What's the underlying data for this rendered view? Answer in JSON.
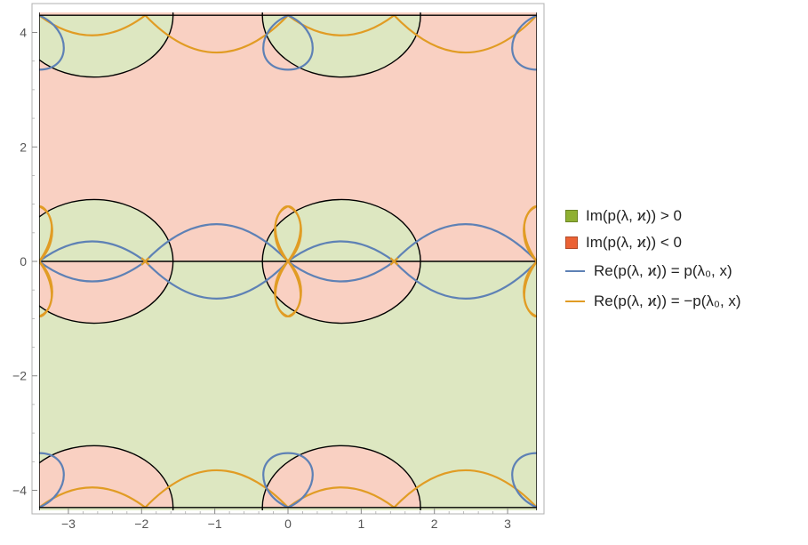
{
  "chart_data": {
    "type": "region",
    "xlim": [
      -3.4,
      3.4
    ],
    "ylim": [
      -4.35,
      4.35
    ],
    "x_ticks": [
      -3,
      -2,
      -1,
      0,
      1,
      2,
      3
    ],
    "x_tick_labels": [
      "−3",
      "−2",
      "−1",
      "0",
      "1",
      "2",
      "3"
    ],
    "y_ticks": [
      -4,
      -2,
      0,
      2,
      4
    ],
    "y_tick_labels": [
      "−4",
      "−2",
      "0",
      "2",
      "4"
    ],
    "legend_position": "right",
    "regions": [
      {
        "name": "Im(p(λ, ϰ)) > 0",
        "color": "#8fb032"
      },
      {
        "name": "Im(p(λ, ϰ)) < 0",
        "color": "#eb6235"
      }
    ],
    "series": [
      {
        "name": "Re(p(λ, ϰ)) = p(λ₀, x)",
        "color": "#5e81b5"
      },
      {
        "name": "Re(p(λ, ϰ)) = −p(λ₀, x)",
        "color": "#e19c24"
      }
    ],
    "boundary_circles": [
      {
        "center": [
          -2.65,
          0
        ],
        "radius": 1.08
      },
      {
        "center": [
          0.73,
          0
        ],
        "radius": 1.08
      },
      {
        "center": [
          -2.65,
          4.3
        ],
        "radius": 1.08
      },
      {
        "center": [
          0.73,
          4.3
        ],
        "radius": 1.08
      },
      {
        "center": [
          -2.65,
          -4.3
        ],
        "radius": 1.08
      },
      {
        "center": [
          0.73,
          -4.3
        ],
        "radius": 1.08
      }
    ],
    "blue_lobe_points_x": [
      -3.4,
      -1.95,
      1.45,
      3.4
    ],
    "blue_lobe_peaks": [
      {
        "x": -2.65,
        "y": 0.35
      },
      {
        "x": -0.93,
        "y": 0.65
      },
      {
        "x": 0.73,
        "y": 0.35
      },
      {
        "x": 2.43,
        "y": 0.65
      }
    ],
    "orange_arc_points_x": [
      -3.4,
      -1.95,
      0.0,
      1.45,
      3.4
    ],
    "orange_arc_depths": [
      {
        "x": -2.65,
        "y": 0.35
      },
      {
        "x": -0.93,
        "y": 0.65
      },
      {
        "x": 0.73,
        "y": 0.35
      },
      {
        "x": 2.43,
        "y": 0.65
      }
    ]
  },
  "legend": {
    "im_pos_label": "Im(p(λ, ϰ)) > 0",
    "im_neg_label": "Im(p(λ, ϰ)) < 0",
    "re_pos_label": "Re(p(λ, ϰ)) = p(λ₀, x)",
    "re_neg_label": "Re(p(λ, ϰ)) = −p(λ₀, x)"
  }
}
